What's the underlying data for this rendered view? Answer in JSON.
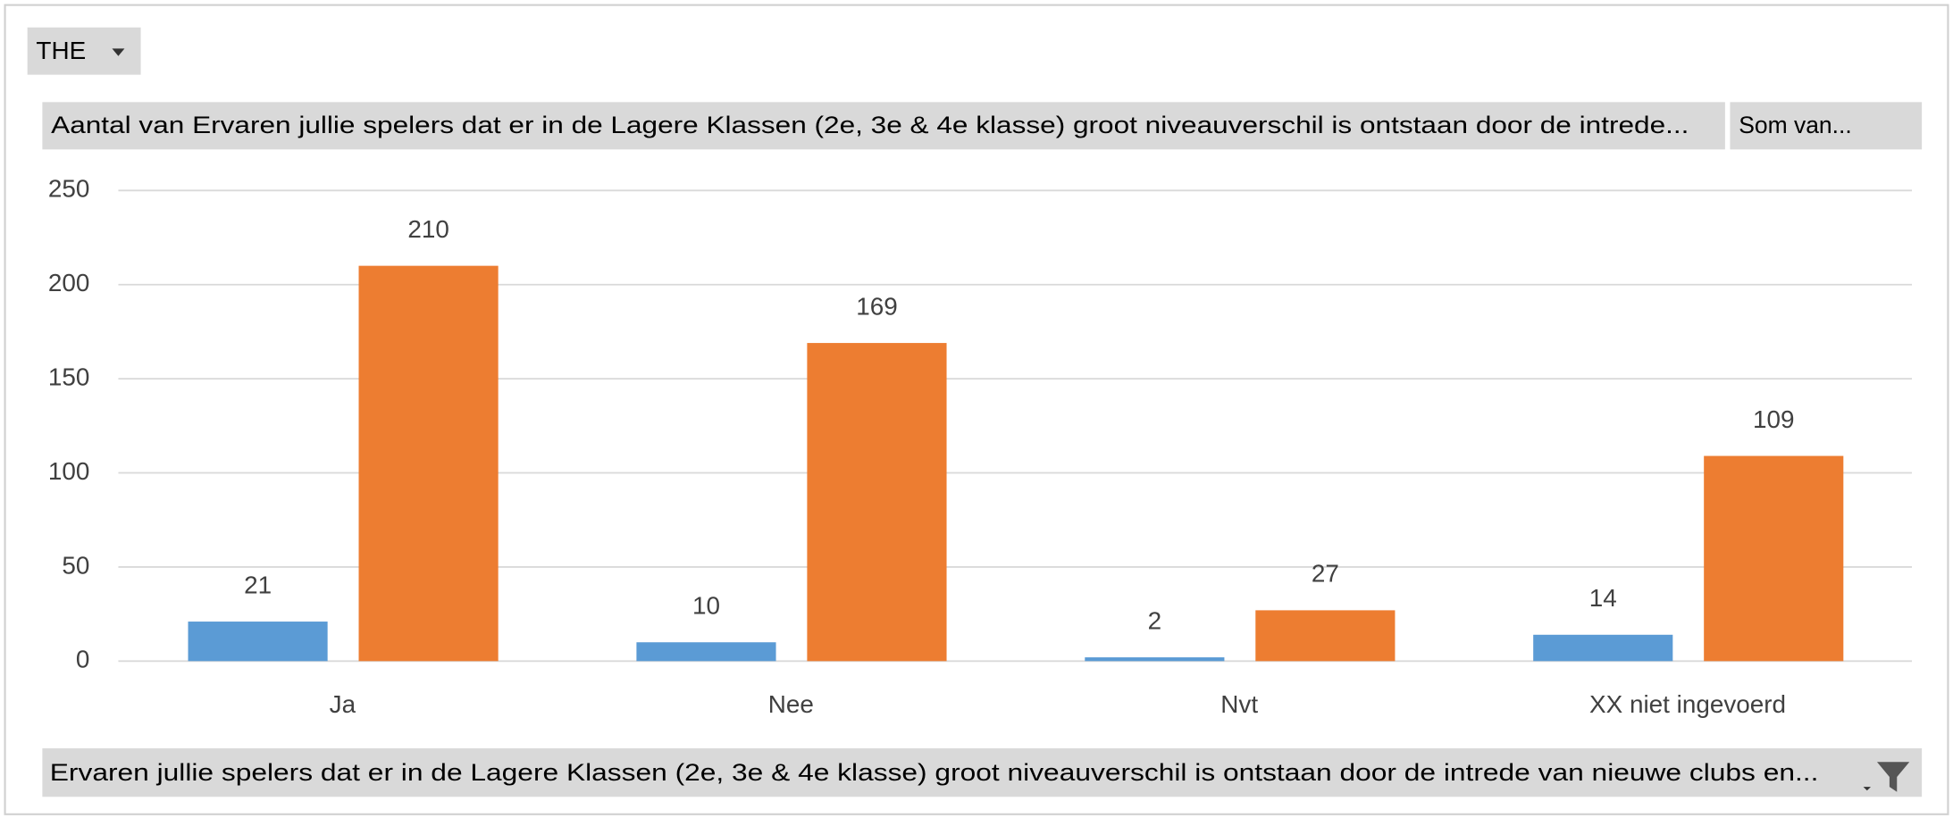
{
  "chart_data": {
    "type": "bar",
    "report_filter": "THE",
    "x_label": "Ervaren jullie spelers dat er in de Lagere Klassen (2e, 3e & 4e klasse) groot niveauverschil is ontstaan door de intrede van nieuwe clubs en...",
    "categories": [
      "Ja",
      "Nee",
      "Nvt",
      "XX niet ingevoerd"
    ],
    "series": [
      {
        "name": "Aantal van Ervaren jullie spelers dat er in de Lagere Klassen (2e, 3e & 4e klasse) groot niveauverschil is ontstaan door de intrede...",
        "color": "#5b9bd5",
        "values": [
          21,
          10,
          2,
          14
        ]
      },
      {
        "name": "Som van...",
        "color": "#ed7d31",
        "values": [
          210,
          169,
          27,
          109
        ]
      }
    ],
    "ylim": [
      0,
      250
    ],
    "yticks": [
      0,
      50,
      100,
      150,
      200,
      250
    ],
    "grid": true
  }
}
